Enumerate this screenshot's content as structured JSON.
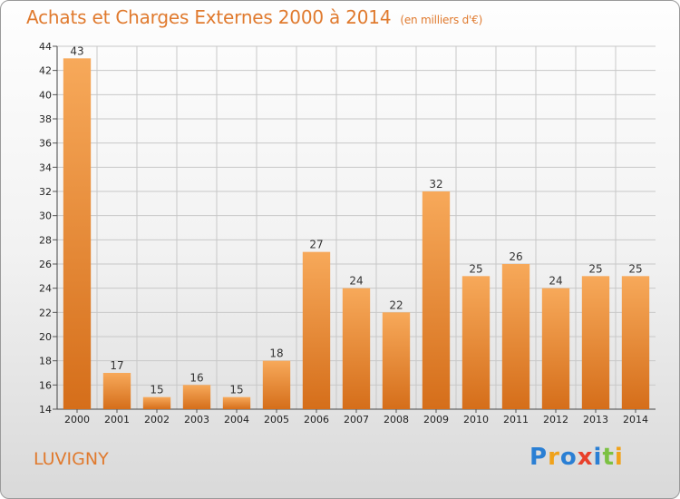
{
  "title": "Achats et Charges Externes 2000 à 2014",
  "subtitle": "(en milliers d'€)",
  "commune": "LUVIGNY",
  "logo": {
    "text": "Proxiti",
    "letters": [
      {
        "ch": "P",
        "color": "#2a7fd4"
      },
      {
        "ch": "r",
        "color": "#f0a21a"
      },
      {
        "ch": "o",
        "color": "#2a7fd4"
      },
      {
        "ch": "x",
        "color": "#e8402b"
      },
      {
        "ch": "i",
        "color": "#2a7fd4"
      },
      {
        "ch": "t",
        "color": "#7cc142"
      },
      {
        "ch": "i",
        "color": "#f0a21a"
      }
    ]
  },
  "colors": {
    "bar_light": "#f7a95a",
    "bar_dark": "#d56e1a",
    "title": "#e07a2e"
  },
  "chart_data": {
    "type": "bar",
    "title": "Achats et Charges Externes 2000 à 2014",
    "subtitle": "(en milliers d'€)",
    "categories": [
      "2000",
      "2001",
      "2002",
      "2003",
      "2004",
      "2005",
      "2006",
      "2007",
      "2008",
      "2009",
      "2010",
      "2011",
      "2012",
      "2013",
      "2014"
    ],
    "values": [
      43,
      17,
      15,
      16,
      15,
      18,
      27,
      24,
      22,
      32,
      25,
      26,
      24,
      25,
      25
    ],
    "ylim": [
      14,
      44
    ],
    "yticks": [
      14,
      16,
      18,
      20,
      22,
      24,
      26,
      28,
      30,
      32,
      34,
      36,
      38,
      40,
      42,
      44
    ],
    "grid": true,
    "xlabel": "",
    "ylabel": ""
  }
}
